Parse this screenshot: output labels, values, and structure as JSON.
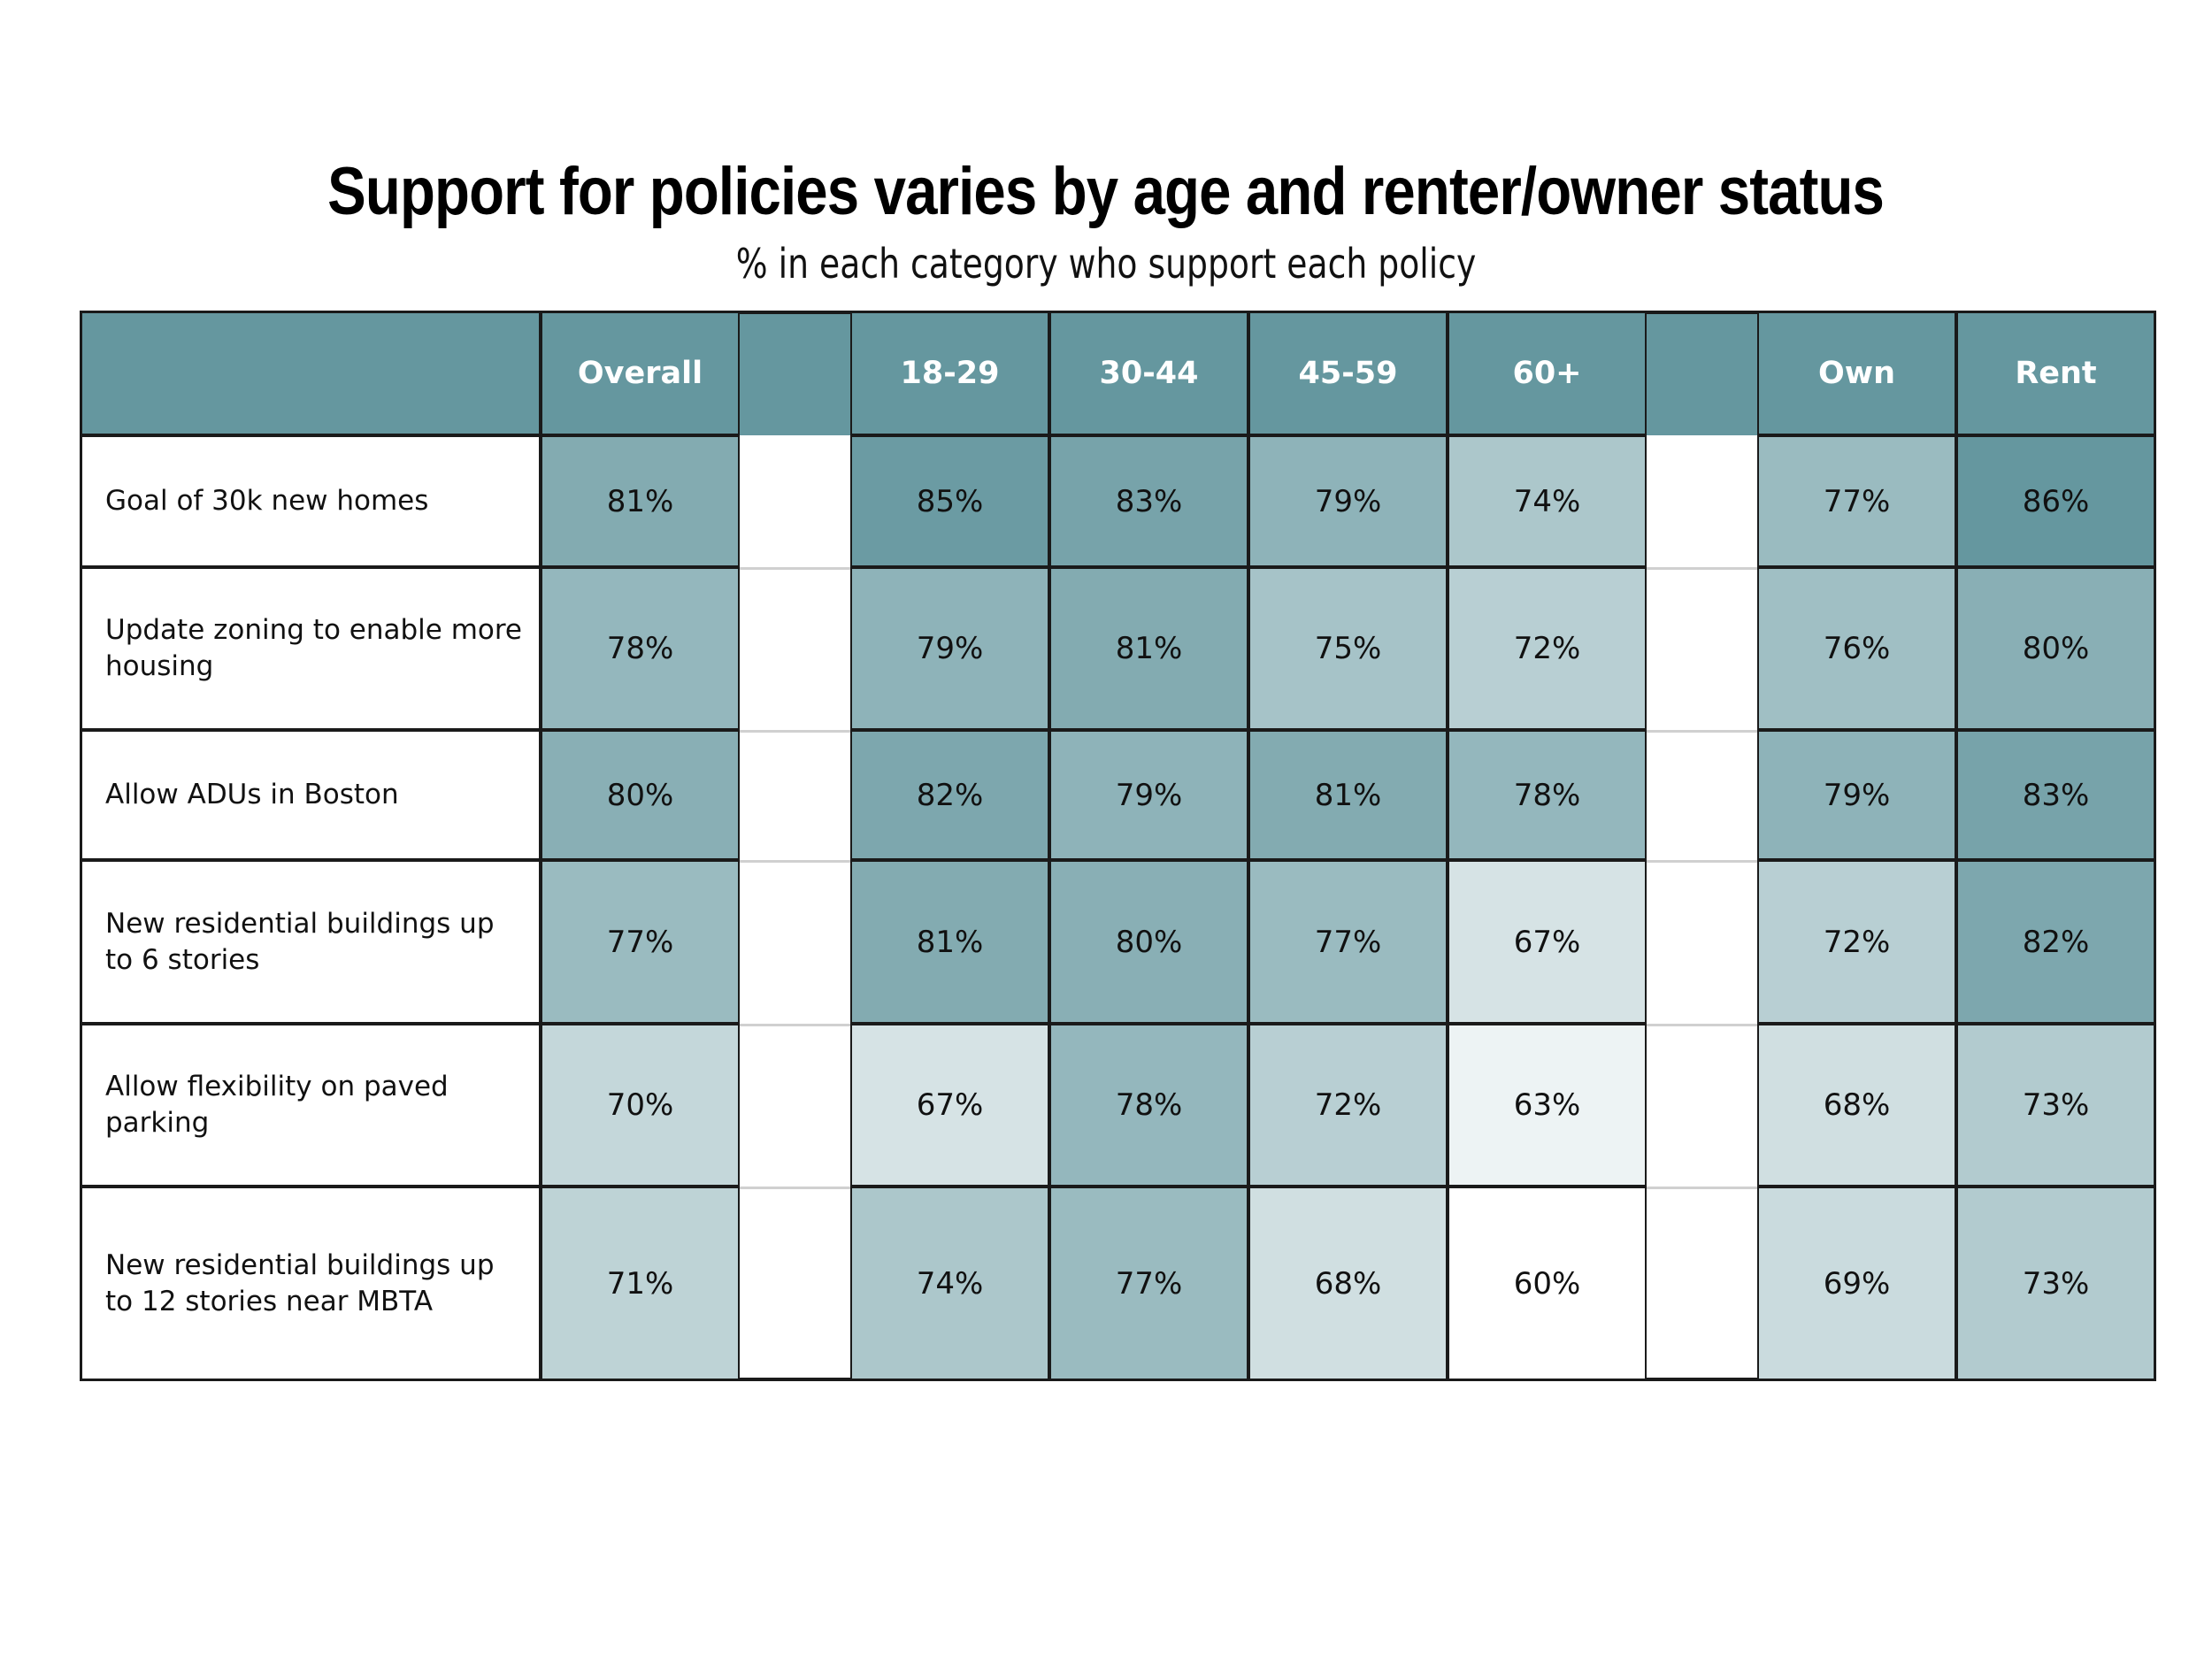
{
  "title": "Support for policies varies by age and renter/owner status",
  "subtitle": "% in each category who support each policy",
  "colors": {
    "header": "#65979f",
    "scale_low": "#ffffff",
    "scale_high": "#65979f",
    "border": "#1a1a1a",
    "spacer_rule": "#d0d0d0"
  },
  "chart_data": {
    "type": "heatmap",
    "title": "Support for policies varies by age and renter/owner status",
    "subtitle": "% in each category who support each policy",
    "columns": [
      "Overall",
      "18-29",
      "30-44",
      "45-59",
      "60+",
      "Own",
      "Rent"
    ],
    "column_groups": [
      [
        "Overall"
      ],
      [
        "18-29",
        "30-44",
        "45-59",
        "60+"
      ],
      [
        "Own",
        "Rent"
      ]
    ],
    "rows": [
      "Goal of 30k new homes",
      "Update zoning to enable more housing",
      "Allow ADUs in Boston",
      "New residential buildings up to 6 stories",
      "Allow flexibility on paved parking",
      "New residential buildings up to 12 stories near MBTA"
    ],
    "values": [
      [
        81,
        85,
        83,
        79,
        74,
        77,
        86
      ],
      [
        78,
        79,
        81,
        75,
        72,
        76,
        80
      ],
      [
        80,
        82,
        79,
        81,
        78,
        79,
        83
      ],
      [
        77,
        81,
        80,
        77,
        67,
        72,
        82
      ],
      [
        70,
        67,
        78,
        72,
        63,
        68,
        73
      ],
      [
        71,
        74,
        77,
        68,
        60,
        69,
        73
      ]
    ],
    "value_labels": [
      [
        "81%",
        "85%",
        "83%",
        "79%",
        "74%",
        "77%",
        "86%"
      ],
      [
        "78%",
        "79%",
        "81%",
        "75%",
        "72%",
        "76%",
        "80%"
      ],
      [
        "80%",
        "82%",
        "79%",
        "81%",
        "78%",
        "79%",
        "83%"
      ],
      [
        "77%",
        "81%",
        "80%",
        "77%",
        "67%",
        "72%",
        "82%"
      ],
      [
        "70%",
        "67%",
        "78%",
        "72%",
        "63%",
        "68%",
        "73%"
      ],
      [
        "71%",
        "74%",
        "77%",
        "68%",
        "60%",
        "69%",
        "73%"
      ]
    ],
    "color_range": [
      60,
      86
    ],
    "unit": "%"
  }
}
